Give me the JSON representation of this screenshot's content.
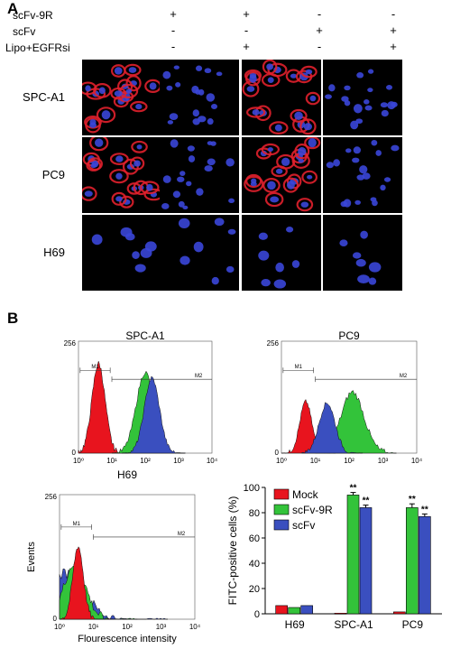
{
  "panel_a": {
    "letter": "A",
    "conditions": [
      {
        "label": "scFv-9R",
        "signs": [
          "+",
          "+",
          "-",
          "-"
        ]
      },
      {
        "label": "scFv",
        "signs": [
          "-",
          "-",
          "+",
          "+"
        ]
      },
      {
        "label": "Lipo+EGFRsi",
        "signs": [
          "-",
          "+",
          "-",
          "+"
        ]
      }
    ],
    "rows": [
      {
        "label": "SPC-A1",
        "red": [
          true,
          false,
          true,
          false
        ]
      },
      {
        "label": "PC9",
        "red": [
          true,
          false,
          true,
          false
        ]
      },
      {
        "label": "H69",
        "red": [
          false,
          false,
          false,
          false
        ]
      }
    ],
    "colors": {
      "nucleus": "#3a46d8",
      "membrane": "#e0202c"
    }
  },
  "panel_b": {
    "letter": "B",
    "histograms": [
      {
        "title": "SPC-A1",
        "ymax": "256",
        "ylabel": "",
        "xlabel": "",
        "gate1": "M1",
        "gate2": "M2",
        "xticks": [
          "10⁰",
          "10¹",
          "10²",
          "10³",
          "10⁴"
        ]
      },
      {
        "title": "PC9",
        "ymax": "256",
        "ylabel": "",
        "xlabel": "",
        "gate1": "M1",
        "gate2": "M2",
        "xticks": [
          "10⁰",
          "10¹",
          "10²",
          "10³",
          "10⁴"
        ]
      },
      {
        "title": "H69",
        "ymax": "256",
        "ylabel": "Events",
        "xlabel": "Flourescence intensity",
        "gate1": "M1",
        "gate2": "M2",
        "xticks": [
          "10⁰",
          "10¹",
          "10²",
          "10³",
          "10⁴"
        ]
      }
    ],
    "yzero": "0",
    "hist_colors": {
      "mock": "#e8141e",
      "scfv9r": "#33c33a",
      "scfv": "#3a4fbf"
    }
  },
  "chart_data": {
    "type": "bar",
    "title": "",
    "xlabel": "",
    "ylabel": "FITC-positive cells (%)",
    "categories": [
      "H69",
      "SPC-A1",
      "PC9"
    ],
    "ylim": [
      0,
      100
    ],
    "yticks": [
      0,
      20,
      40,
      60,
      80,
      100
    ],
    "series": [
      {
        "name": "Mock",
        "color": "#e8141e",
        "values": [
          6.5,
          0.5,
          1.5
        ],
        "errors": [
          0,
          0,
          0
        ]
      },
      {
        "name": "scFv-9R",
        "color": "#33c33a",
        "values": [
          5,
          94,
          84
        ],
        "errors": [
          0,
          2,
          3
        ]
      },
      {
        "name": "scFv",
        "color": "#3a4fbf",
        "values": [
          6.5,
          84,
          77
        ],
        "errors": [
          0,
          2,
          2
        ]
      }
    ],
    "annotations": [
      {
        "category": "SPC-A1",
        "series": "scFv-9R",
        "text": "**"
      },
      {
        "category": "SPC-A1",
        "series": "scFv",
        "text": "**"
      },
      {
        "category": "PC9",
        "series": "scFv-9R",
        "text": "**"
      },
      {
        "category": "PC9",
        "series": "scFv",
        "text": "**"
      }
    ],
    "legend": "top-left"
  }
}
